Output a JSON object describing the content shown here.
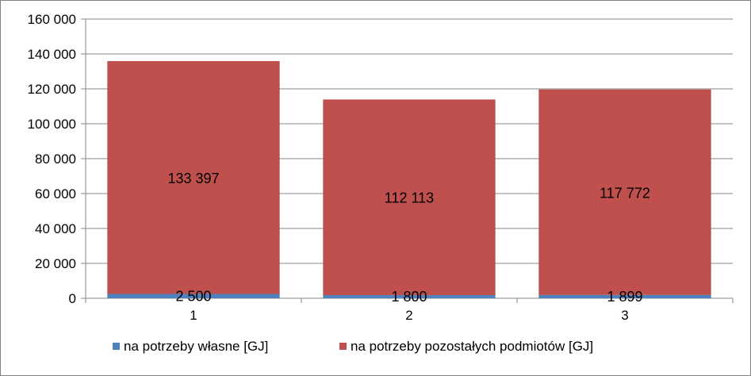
{
  "chart_data": {
    "type": "bar",
    "stacked": true,
    "categories": [
      "1",
      "2",
      "3"
    ],
    "series": [
      {
        "name": "na potrzeby własne [GJ]",
        "values": [
          2500,
          1800,
          1899
        ],
        "labels": [
          "2 500",
          "1 800",
          "1 899"
        ],
        "color": "#4f81bd"
      },
      {
        "name": "na potrzeby pozostałych podmiotów [GJ]",
        "values": [
          133397,
          112113,
          117772
        ],
        "labels": [
          "133 397",
          "112 113",
          "117 772"
        ],
        "color": "#c0504d"
      }
    ],
    "title": "",
    "xlabel": "",
    "ylabel": "",
    "ylim": [
      0,
      160000
    ],
    "yticks": [
      0,
      20000,
      40000,
      60000,
      80000,
      100000,
      120000,
      140000,
      160000
    ],
    "ytick_labels": [
      "0",
      "20 000",
      "40 000",
      "60 000",
      "80 000",
      "100 000",
      "120 000",
      "140 000",
      "160 000"
    ],
    "grid": true,
    "legend_position": "bottom"
  }
}
